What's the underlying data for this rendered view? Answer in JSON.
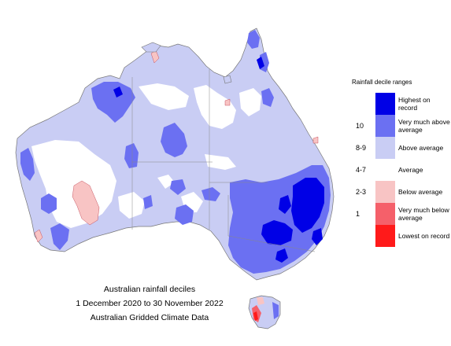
{
  "legend": {
    "title": "Rainfall decile ranges",
    "items": [
      {
        "decile": "",
        "label": "Highest on record",
        "color": "#0000e6"
      },
      {
        "decile": "10",
        "label": "Very much above average",
        "color": "#6b70f2"
      },
      {
        "decile": "8-9",
        "label": "Above average",
        "color": "#c9cdf4"
      },
      {
        "decile": "4-7",
        "label": "Average",
        "color": "#ffffff"
      },
      {
        "decile": "2-3",
        "label": "Below average",
        "color": "#f8c4c4"
      },
      {
        "decile": "1",
        "label": "Very much below average",
        "color": "#f5606a"
      },
      {
        "decile": "",
        "label": "Lowest on record",
        "color": "#ff1a1a"
      }
    ]
  },
  "caption": {
    "line1": "Australian rainfall deciles",
    "line2": "1 December 2020 to 30 November 2022",
    "line3": "Australian Gridded Climate Data"
  }
}
